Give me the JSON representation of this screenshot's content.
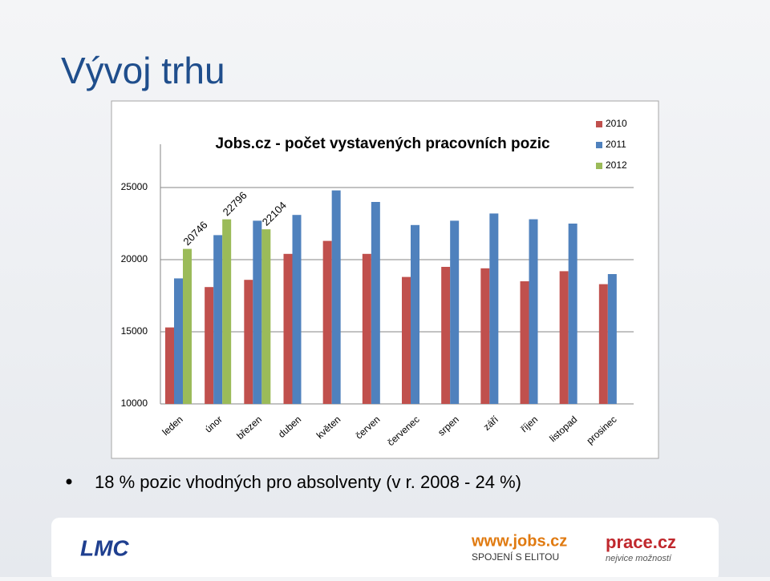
{
  "slide_title": "Vývoj trhu",
  "bullet": "18 % pozic vhodných pro absolventy (v r. 2008 - 24 %)",
  "footer": {
    "logo_lmc": "LMC",
    "logo_jobs": "www.jobs.cz",
    "jobs_tagline": "SPOJENÍ S ELITOU",
    "logo_prace": "prace.cz",
    "prace_tagline": "nejvice možností"
  },
  "chart_data": {
    "type": "bar",
    "title": "Jobs.cz - počet vystavených pracovních pozic",
    "categories": [
      "leden",
      "únor",
      "březen",
      "duben",
      "květen",
      "červen",
      "červenec",
      "srpen",
      "září",
      "říjen",
      "listopad",
      "prosinec"
    ],
    "series": [
      {
        "name": "2010",
        "color": "#c0504d",
        "values": [
          15300,
          18100,
          18600,
          20400,
          21300,
          20400,
          18800,
          19500,
          19400,
          18500,
          19200,
          18300
        ]
      },
      {
        "name": "2011",
        "color": "#4f81bd",
        "values": [
          18700,
          21700,
          22700,
          23100,
          24800,
          24000,
          22400,
          22700,
          23200,
          22800,
          22500,
          19000
        ]
      },
      {
        "name": "2012",
        "color": "#9bbb59",
        "values": [
          20746,
          22796,
          22104,
          null,
          null,
          null,
          null,
          null,
          null,
          null,
          null,
          null
        ]
      }
    ],
    "ylim": [
      10000,
      28000
    ],
    "yticks": [
      10000,
      15000,
      20000,
      25000
    ],
    "grid": true,
    "legend": "top-right"
  }
}
